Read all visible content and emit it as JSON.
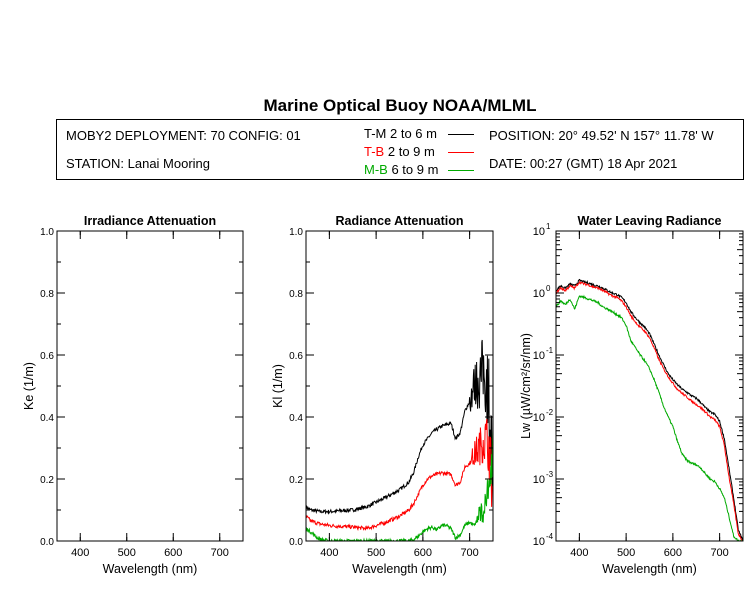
{
  "header": {
    "title": "Marine Optical Buoy NOAA/MLML",
    "deployment": "MOBY2 DEPLOYMENT: 70 CONFIG: 01",
    "station": "STATION: Lanai Mooring",
    "position": "POSITION: 20° 49.52' N   157° 11.78' W",
    "date": "DATE: 00:27 (GMT) 18 Apr 2021",
    "legend": [
      {
        "code": "T-M",
        "depth": "2 to 6  m",
        "color": "#000000"
      },
      {
        "code": "T-B",
        "depth": "2 to 9  m",
        "color": "#ff0000"
      },
      {
        "code": "M-B",
        "depth": "6 to 9  m",
        "color": "#00aa00"
      }
    ]
  },
  "chart_data": [
    {
      "type": "line",
      "title": "Irradiance Attenuation",
      "xlabel": "Wavelength (nm)",
      "ylabel": "Ke  (1/m)",
      "xlim": [
        350,
        750
      ],
      "ylim": [
        0,
        1.0
      ],
      "xticks": [
        "400",
        "500",
        "600",
        "700"
      ],
      "yticks": [
        "0.0",
        "0.2",
        "0.4",
        "0.6",
        "0.8",
        "1.0"
      ],
      "series": []
    },
    {
      "type": "line",
      "title": "Radiance Attenuation",
      "xlabel": "Wavelength (nm)",
      "ylabel": "Kl  (1/m)",
      "xlim": [
        350,
        750
      ],
      "ylim": [
        0,
        1.0
      ],
      "xticks": [
        "400",
        "500",
        "600",
        "700"
      ],
      "yticks": [
        "0.0",
        "0.2",
        "0.4",
        "0.6",
        "0.8",
        "1.0"
      ],
      "series": [
        {
          "name": "T-M",
          "color": "#000000",
          "noise_start": 700,
          "noise_amp": 0.12,
          "x": [
            350,
            360,
            380,
            400,
            450,
            480,
            500,
            520,
            550,
            570,
            580,
            590,
            600,
            610,
            620,
            640,
            660,
            670,
            680,
            690,
            700,
            710,
            720,
            730,
            740,
            750
          ],
          "y": [
            0.11,
            0.1,
            0.095,
            0.095,
            0.1,
            0.11,
            0.125,
            0.14,
            0.165,
            0.19,
            0.22,
            0.27,
            0.31,
            0.33,
            0.35,
            0.37,
            0.38,
            0.33,
            0.35,
            0.42,
            0.45,
            0.5,
            0.52,
            0.55,
            0.5,
            0.2
          ]
        },
        {
          "name": "T-B",
          "color": "#ff0000",
          "noise_start": 705,
          "noise_amp": 0.08,
          "x": [
            350,
            360,
            380,
            400,
            450,
            480,
            500,
            520,
            550,
            570,
            580,
            590,
            600,
            610,
            620,
            640,
            660,
            670,
            680,
            690,
            700,
            710,
            720,
            730,
            740,
            750
          ],
          "y": [
            0.08,
            0.065,
            0.055,
            0.05,
            0.045,
            0.04,
            0.05,
            0.06,
            0.08,
            0.1,
            0.12,
            0.15,
            0.18,
            0.2,
            0.21,
            0.22,
            0.215,
            0.18,
            0.19,
            0.24,
            0.25,
            0.28,
            0.3,
            0.33,
            0.32,
            0.15
          ]
        },
        {
          "name": "M-B",
          "color": "#00aa00",
          "noise_start": 715,
          "noise_amp": 0.05,
          "x": [
            350,
            360,
            370,
            380,
            400,
            450,
            500,
            550,
            570,
            580,
            590,
            600,
            610,
            620,
            630,
            640,
            650,
            660,
            670,
            680,
            690,
            700,
            710,
            720,
            730,
            740,
            750
          ],
          "y": [
            0.04,
            0.03,
            0.015,
            0.005,
            0.0,
            0.0,
            0.0,
            0.0,
            0.0,
            0.005,
            0.015,
            0.03,
            0.04,
            0.045,
            0.035,
            0.05,
            0.05,
            0.04,
            0.01,
            0.02,
            0.05,
            0.06,
            0.05,
            0.08,
            0.1,
            0.15,
            0.3
          ]
        }
      ]
    },
    {
      "type": "line",
      "title": "Water Leaving Radiance",
      "xlabel": "Wavelength (nm)",
      "ylabel": "Lw  (µW/cm²/sr/nm)",
      "yscale": "log",
      "xlim": [
        350,
        750
      ],
      "ylim": [
        0.0001,
        10
      ],
      "xticks": [
        "400",
        "500",
        "600",
        "700"
      ],
      "yticks": [
        {
          "base": "10",
          "exp": "1"
        },
        {
          "base": "10",
          "exp": "0"
        },
        {
          "base": "10",
          "exp": "-1"
        },
        {
          "base": "10",
          "exp": "-2"
        },
        {
          "base": "10",
          "exp": "-3"
        },
        {
          "base": "10",
          "exp": "-4"
        }
      ],
      "series": [
        {
          "name": "T-M",
          "color": "#000000",
          "x": [
            350,
            360,
            370,
            380,
            390,
            400,
            410,
            420,
            430,
            440,
            450,
            460,
            470,
            480,
            490,
            500,
            510,
            520,
            530,
            540,
            550,
            560,
            570,
            580,
            590,
            600,
            610,
            620,
            630,
            640,
            650,
            660,
            670,
            680,
            690,
            700,
            710,
            720,
            730,
            740,
            750
          ],
          "y": [
            1.1,
            1.3,
            1.2,
            1.4,
            1.3,
            1.6,
            1.5,
            1.45,
            1.35,
            1.3,
            1.2,
            1.1,
            1.0,
            0.95,
            0.85,
            0.7,
            0.5,
            0.4,
            0.33,
            0.28,
            0.22,
            0.15,
            0.1,
            0.07,
            0.05,
            0.04,
            0.033,
            0.028,
            0.025,
            0.022,
            0.02,
            0.017,
            0.014,
            0.012,
            0.011,
            0.0085,
            0.0045,
            0.0015,
            0.0005,
            0.00015,
            0.0001
          ]
        },
        {
          "name": "T-B",
          "color": "#ff0000",
          "x": [
            350,
            360,
            370,
            380,
            390,
            400,
            410,
            420,
            430,
            440,
            450,
            460,
            470,
            480,
            490,
            500,
            510,
            520,
            530,
            540,
            550,
            560,
            570,
            580,
            590,
            600,
            610,
            620,
            630,
            640,
            650,
            660,
            670,
            680,
            690,
            700,
            710,
            720,
            730,
            740,
            750
          ],
          "y": [
            1.0,
            1.2,
            1.1,
            1.3,
            1.2,
            1.5,
            1.4,
            1.35,
            1.25,
            1.2,
            1.1,
            1.0,
            0.9,
            0.85,
            0.75,
            0.6,
            0.43,
            0.34,
            0.28,
            0.24,
            0.19,
            0.13,
            0.085,
            0.06,
            0.045,
            0.035,
            0.028,
            0.024,
            0.021,
            0.018,
            0.016,
            0.014,
            0.012,
            0.01,
            0.009,
            0.007,
            0.0035,
            0.0011,
            0.0004,
            0.00013,
            0.0001
          ]
        },
        {
          "name": "M-B",
          "color": "#00aa00",
          "x": [
            350,
            360,
            370,
            380,
            390,
            400,
            410,
            420,
            430,
            440,
            450,
            460,
            470,
            480,
            490,
            500,
            510,
            520,
            530,
            540,
            550,
            560,
            570,
            580,
            590,
            600,
            610,
            620,
            630,
            640,
            650,
            660,
            670,
            680,
            690,
            700,
            710,
            720,
            730,
            740,
            750
          ],
          "y": [
            0.6,
            0.75,
            0.65,
            0.8,
            0.55,
            0.9,
            0.85,
            0.8,
            0.75,
            0.7,
            0.6,
            0.55,
            0.5,
            0.45,
            0.4,
            0.3,
            0.17,
            0.13,
            0.1,
            0.08,
            0.06,
            0.04,
            0.025,
            0.015,
            0.01,
            0.007,
            0.004,
            0.0025,
            0.002,
            0.0018,
            0.0017,
            0.0015,
            0.0012,
            0.001,
            0.0009,
            0.0007,
            0.0005,
            0.00025,
            0.00012,
            0.0001,
            0.0001
          ]
        }
      ]
    }
  ]
}
